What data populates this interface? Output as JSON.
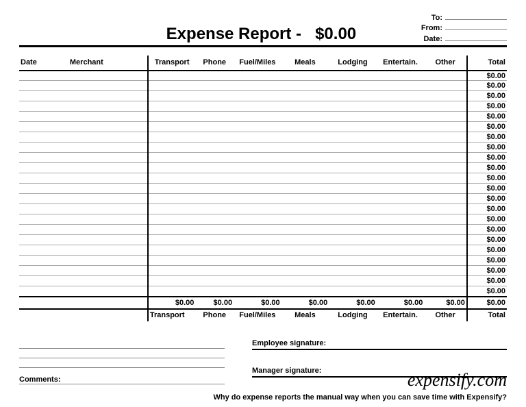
{
  "title_prefix": "Expense Report -",
  "title_amount": "$0.00",
  "meta": {
    "to_label": "To:",
    "from_label": "From:",
    "date_label": "Date:"
  },
  "columns": {
    "date": "Date",
    "merchant": "Merchant",
    "transport": "Transport",
    "phone": "Phone",
    "fuel": "Fuel/Miles",
    "meals": "Meals",
    "lodging": "Lodging",
    "entertain": "Entertain.",
    "other": "Other",
    "total": "Total"
  },
  "row_total_value": "$0.00",
  "row_count": 22,
  "category_totals": {
    "transport": "$0.00",
    "phone": "$0.00",
    "fuel": "$0.00",
    "meals": "$0.00",
    "lodging": "$0.00",
    "entertain": "$0.00",
    "other": "$0.00",
    "grand": "$0.00"
  },
  "comments_label": "Comments:",
  "employee_sig_label": "Employee signature:",
  "manager_sig_label": "Manager signature:",
  "brand": "expensify.com",
  "tagline": "Why do expense reports the manual way when you can save time with Expensify?",
  "style": {
    "page_bg": "#ffffff",
    "text_color": "#000000",
    "rule_color": "#aaaaaa",
    "heavy_rule_color": "#000000",
    "title_fontsize": 24,
    "body_fontsize": 11
  }
}
